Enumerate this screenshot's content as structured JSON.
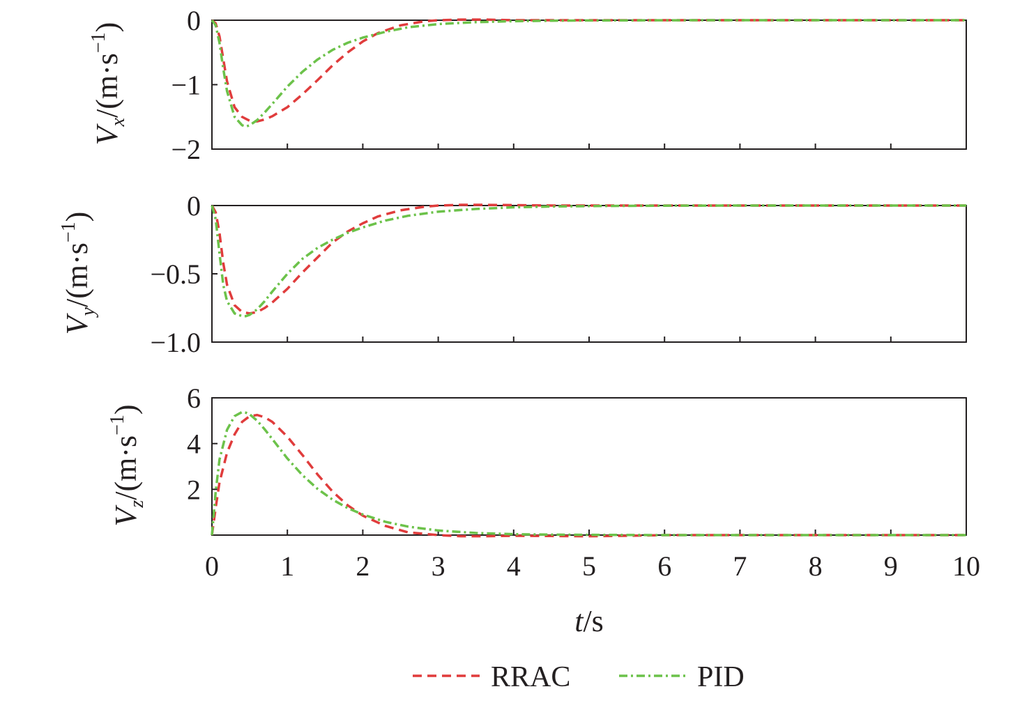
{
  "colors": {
    "rrac": "#e03c3c",
    "pid": "#6cc24a",
    "axis": "#231f20"
  },
  "legend": [
    {
      "key": "rrac",
      "label": "RRAC",
      "dash": "dashed"
    },
    {
      "key": "pid",
      "label": "PID",
      "dash": "dashdot"
    }
  ],
  "chart_data": [
    {
      "type": "line",
      "ylabel_main": "V",
      "ylabel_sub": "x",
      "ylabel_unit": "/(m·s",
      "ylabel_exp": "−1",
      "ylabel_close": ")",
      "xlim": [
        0,
        10
      ],
      "ylim": [
        -2,
        0
      ],
      "yticks": [
        0,
        -1,
        -2
      ],
      "ytick_labels": [
        "0",
        "−1",
        "−2"
      ],
      "series": [
        {
          "name": "RRAC",
          "x": [
            0,
            0.05,
            0.1,
            0.15,
            0.2,
            0.3,
            0.4,
            0.5,
            0.6,
            0.7,
            0.8,
            1.0,
            1.2,
            1.4,
            1.6,
            1.8,
            2.0,
            2.2,
            2.5,
            2.8,
            3.0,
            3.3,
            3.6,
            4.0,
            4.5,
            5.0,
            6.0,
            7.0,
            8.0,
            9.0,
            10.0
          ],
          "y": [
            0,
            -0.05,
            -0.25,
            -0.6,
            -0.95,
            -1.35,
            -1.5,
            -1.56,
            -1.57,
            -1.54,
            -1.49,
            -1.35,
            -1.15,
            -0.93,
            -0.7,
            -0.5,
            -0.33,
            -0.2,
            -0.08,
            -0.02,
            0.0,
            0.01,
            0.01,
            0.0,
            0.0,
            0.0,
            0.0,
            0.0,
            0.0,
            0.0,
            0.0
          ]
        },
        {
          "name": "PID",
          "x": [
            0,
            0.05,
            0.1,
            0.15,
            0.2,
            0.3,
            0.4,
            0.45,
            0.5,
            0.6,
            0.7,
            0.8,
            1.0,
            1.2,
            1.4,
            1.6,
            1.8,
            2.0,
            2.3,
            2.6,
            3.0,
            3.5,
            4.0,
            4.5,
            5.0,
            6.0,
            7.0,
            8.0,
            9.0,
            10.0
          ],
          "y": [
            0,
            -0.08,
            -0.35,
            -0.75,
            -1.1,
            -1.5,
            -1.63,
            -1.65,
            -1.63,
            -1.55,
            -1.43,
            -1.3,
            -1.03,
            -0.8,
            -0.61,
            -0.46,
            -0.35,
            -0.27,
            -0.18,
            -0.11,
            -0.06,
            -0.03,
            -0.015,
            -0.008,
            -0.004,
            -0.001,
            0.0,
            0.0,
            0.0,
            0.0
          ]
        }
      ]
    },
    {
      "type": "line",
      "ylabel_main": "V",
      "ylabel_sub": "y",
      "ylabel_unit": "/(m·s",
      "ylabel_exp": "−1",
      "ylabel_close": ")",
      "xlim": [
        0,
        10
      ],
      "ylim": [
        -1.0,
        0
      ],
      "yticks": [
        0,
        -0.5,
        -1.0
      ],
      "ytick_labels": [
        "0",
        "−0.5",
        "−1.0"
      ],
      "series": [
        {
          "name": "RRAC",
          "x": [
            0,
            0.05,
            0.1,
            0.15,
            0.2,
            0.3,
            0.4,
            0.5,
            0.6,
            0.7,
            0.8,
            1.0,
            1.2,
            1.4,
            1.6,
            1.8,
            2.0,
            2.2,
            2.5,
            2.8,
            3.0,
            3.3,
            3.6,
            4.0,
            4.5,
            5.0,
            6.0,
            7.0,
            8.0,
            9.0,
            10.0
          ],
          "y": [
            0,
            -0.05,
            -0.2,
            -0.42,
            -0.58,
            -0.73,
            -0.78,
            -0.79,
            -0.78,
            -0.75,
            -0.71,
            -0.61,
            -0.49,
            -0.38,
            -0.27,
            -0.19,
            -0.13,
            -0.08,
            -0.035,
            -0.01,
            0.0,
            0.005,
            0.005,
            0.003,
            0.0,
            0.0,
            0.0,
            0.0,
            0.0,
            0.0,
            0.0
          ]
        },
        {
          "name": "PID",
          "x": [
            0,
            0.05,
            0.1,
            0.15,
            0.2,
            0.3,
            0.4,
            0.45,
            0.5,
            0.6,
            0.7,
            0.8,
            1.0,
            1.2,
            1.4,
            1.6,
            1.8,
            2.0,
            2.3,
            2.6,
            3.0,
            3.5,
            4.0,
            4.5,
            5.0,
            6.0,
            7.0,
            8.0,
            9.0,
            10.0
          ],
          "y": [
            0,
            -0.1,
            -0.35,
            -0.58,
            -0.7,
            -0.79,
            -0.81,
            -0.81,
            -0.8,
            -0.76,
            -0.7,
            -0.63,
            -0.5,
            -0.39,
            -0.31,
            -0.25,
            -0.2,
            -0.16,
            -0.11,
            -0.075,
            -0.045,
            -0.025,
            -0.013,
            -0.007,
            -0.004,
            -0.001,
            0.0,
            0.0,
            0.0,
            0.0
          ]
        }
      ]
    },
    {
      "type": "line",
      "ylabel_main": "V",
      "ylabel_sub": "z",
      "ylabel_unit": "/(m·s",
      "ylabel_exp": "−1",
      "ylabel_close": ")",
      "xlabel_main": "t",
      "xlabel_unit": "/s",
      "xlim": [
        0,
        10
      ],
      "ylim": [
        0,
        6
      ],
      "yticks": [
        2,
        4,
        6
      ],
      "ytick_labels": [
        "2",
        "4",
        "6"
      ],
      "xticks": [
        0,
        1,
        2,
        3,
        4,
        5,
        6,
        7,
        8,
        9,
        10
      ],
      "xtick_labels": [
        "0",
        "1",
        "2",
        "3",
        "4",
        "5",
        "6",
        "7",
        "8",
        "9",
        "10"
      ],
      "series": [
        {
          "name": "RRAC",
          "x": [
            0,
            0.05,
            0.1,
            0.2,
            0.3,
            0.4,
            0.5,
            0.6,
            0.7,
            0.8,
            1.0,
            1.2,
            1.4,
            1.6,
            1.8,
            2.0,
            2.3,
            2.6,
            3.0,
            3.3,
            3.6,
            4.0,
            4.5,
            5.0,
            5.5,
            6.0,
            7.0,
            8.0,
            9.0,
            10.0
          ],
          "y": [
            0,
            1.2,
            2.3,
            3.6,
            4.4,
            4.95,
            5.2,
            5.25,
            5.15,
            4.95,
            4.3,
            3.5,
            2.65,
            1.9,
            1.3,
            0.85,
            0.4,
            0.12,
            0.0,
            -0.05,
            -0.05,
            -0.03,
            -0.04,
            -0.05,
            -0.03,
            0.0,
            0.0,
            0.0,
            0.0,
            0.0
          ]
        },
        {
          "name": "PID",
          "x": [
            0,
            0.05,
            0.1,
            0.2,
            0.3,
            0.4,
            0.45,
            0.5,
            0.6,
            0.7,
            0.8,
            1.0,
            1.2,
            1.4,
            1.6,
            1.8,
            2.0,
            2.3,
            2.6,
            3.0,
            3.5,
            4.0,
            4.5,
            5.0,
            6.0,
            7.0,
            8.0,
            9.0,
            10.0
          ],
          "y": [
            0,
            1.9,
            3.3,
            4.6,
            5.2,
            5.38,
            5.35,
            5.28,
            5.0,
            4.62,
            4.2,
            3.35,
            2.62,
            2.02,
            1.55,
            1.18,
            0.9,
            0.58,
            0.37,
            0.2,
            0.09,
            0.04,
            0.02,
            0.01,
            0.0,
            0.0,
            0.0,
            0.0,
            0.0
          ]
        }
      ]
    }
  ]
}
